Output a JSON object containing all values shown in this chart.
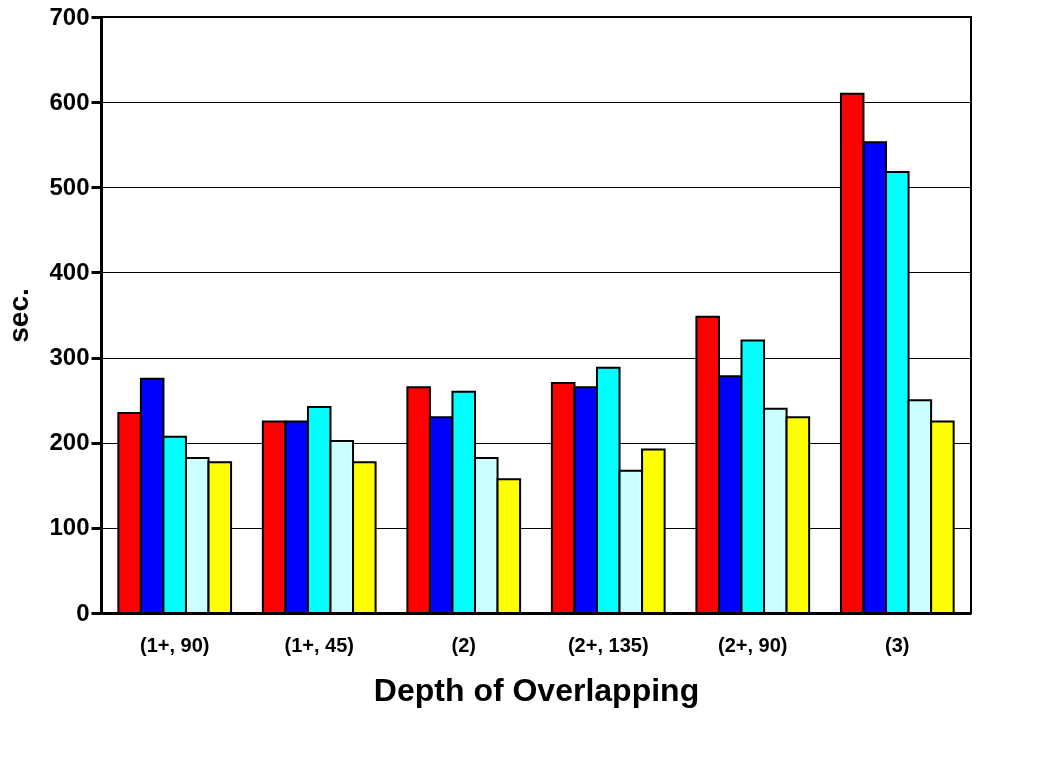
{
  "chart_data": {
    "type": "bar",
    "xlabel": "Depth of Overlapping",
    "ylabel": "sec.",
    "categories": [
      "(1+, 90)",
      "(1+, 45)",
      "(2)",
      "(2+, 135)",
      "(2+, 90)",
      "(3)"
    ],
    "series": [
      {
        "color": "#ff0000",
        "values": [
          235,
          225,
          265,
          270,
          348,
          610
        ]
      },
      {
        "color": "#0000ff",
        "values": [
          275,
          225,
          230,
          265,
          278,
          553
        ]
      },
      {
        "color": "#00ffff",
        "values": [
          207,
          242,
          260,
          288,
          320,
          518
        ]
      },
      {
        "color": "#ccffff",
        "values": [
          182,
          202,
          182,
          167,
          240,
          250
        ]
      },
      {
        "color": "#ffff00",
        "values": [
          177,
          177,
          157,
          192,
          230,
          225
        ]
      }
    ],
    "ylim": [
      0,
      700
    ],
    "yticks": [
      0,
      100,
      200,
      300,
      400,
      500,
      600,
      700
    ],
    "grid": "y",
    "legend": false
  }
}
